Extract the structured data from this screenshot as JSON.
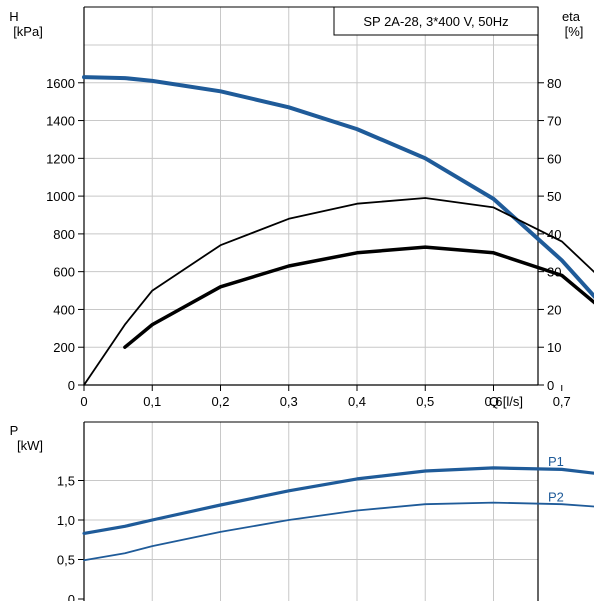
{
  "chart_data": [
    {
      "type": "line",
      "title": "SP 2A-28, 3*400 V, 50Hz",
      "xlabel": "Q [l/s]",
      "ylabel_left": [
        "H",
        "[kPa]"
      ],
      "ylabel_right": [
        "eta",
        "[%]"
      ],
      "xlim": [
        0,
        0.8
      ],
      "ylim_left": [
        0,
        1800
      ],
      "ylim_right": [
        0,
        90
      ],
      "x_ticks": [
        "0",
        "0,1",
        "0,2",
        "0,3",
        "0,4",
        "0,5",
        "0,6",
        "0,7"
      ],
      "y_ticks_left": [
        "0",
        "200",
        "400",
        "600",
        "800",
        "1000",
        "1200",
        "1400",
        "1600"
      ],
      "y_ticks_right": [
        "0",
        "10",
        "20",
        "30",
        "40",
        "50",
        "60",
        "70",
        "80"
      ],
      "grid": true,
      "series": [
        {
          "name": "H",
          "axis": "left",
          "color": "#1f5b99",
          "x": [
            0,
            0.06,
            0.1,
            0.2,
            0.3,
            0.4,
            0.5,
            0.6,
            0.7,
            0.75
          ],
          "y": [
            1630,
            1625,
            1610,
            1555,
            1470,
            1355,
            1200,
            985,
            660,
            460
          ],
          "thin_until": 0.06
        },
        {
          "name": "eta",
          "axis": "right",
          "color": "#000000",
          "x": [
            0,
            0.06,
            0.1,
            0.2,
            0.3,
            0.4,
            0.5,
            0.6,
            0.7,
            0.75
          ],
          "y": [
            0,
            16,
            25,
            37,
            44,
            48,
            49.5,
            47,
            38,
            29.5
          ]
        },
        {
          "name": "eta",
          "axis": "right",
          "color": "#000000",
          "width": 3.5,
          "x": [
            0.06,
            0.1,
            0.2,
            0.3,
            0.4,
            0.5,
            0.6,
            0.7,
            0.75
          ],
          "y": [
            10,
            16,
            26,
            31.5,
            35,
            36.5,
            35,
            29,
            21.5
          ]
        }
      ]
    },
    {
      "type": "line",
      "ylabel_left": [
        "P",
        "[kW]"
      ],
      "xlim": [
        0,
        0.8
      ],
      "ylim_left": [
        0,
        2.0
      ],
      "y_ticks_left": [
        "0",
        "0,5",
        "1,0",
        "1,5"
      ],
      "grid": true,
      "series": [
        {
          "name": "P1",
          "color": "#1f5b99",
          "x": [
            0,
            0.06,
            0.1,
            0.2,
            0.3,
            0.4,
            0.5,
            0.6,
            0.7,
            0.75
          ],
          "y": [
            0.83,
            0.92,
            1.0,
            1.19,
            1.37,
            1.52,
            1.62,
            1.66,
            1.64,
            1.59
          ],
          "thin_until": 0.06
        },
        {
          "name": "P2",
          "color": "#1f5b99",
          "x": [
            0,
            0.06,
            0.1,
            0.2,
            0.3,
            0.4,
            0.5,
            0.6,
            0.7,
            0.75
          ],
          "y": [
            0.49,
            0.58,
            0.67,
            0.85,
            1.0,
            1.12,
            1.2,
            1.22,
            1.2,
            1.17
          ]
        }
      ]
    }
  ]
}
